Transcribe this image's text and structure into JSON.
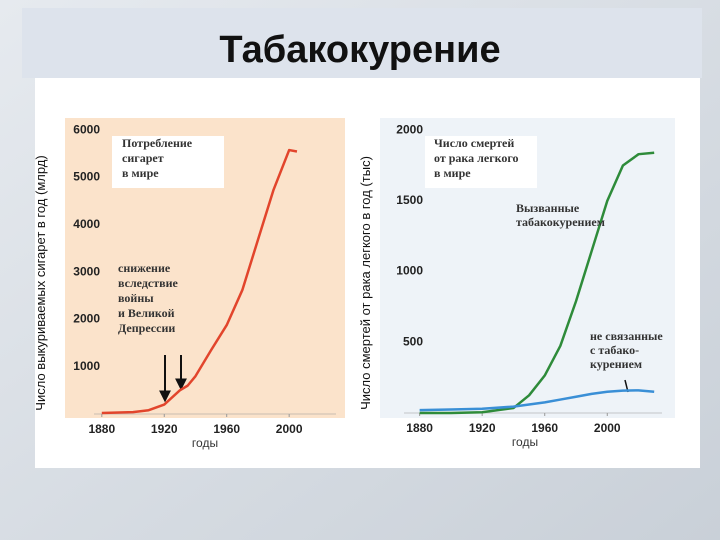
{
  "title": "Табакокурение",
  "chart_data": [
    {
      "type": "line",
      "y_label": "Число выкуриваемых сигарет в год (млрд)",
      "x_label": "годы",
      "x": [
        1880,
        1900,
        1910,
        1920,
        1930,
        1935,
        1940,
        1950,
        1960,
        1970,
        1980,
        1990,
        2000,
        2005
      ],
      "series": [
        {
          "name": "Потребление сигарет в мире",
          "color": "#e2452c",
          "values": [
            20,
            40,
            80,
            200,
            500,
            600,
            800,
            1350,
            1880,
            2620,
            3680,
            4740,
            5580,
            5550
          ]
        }
      ],
      "xlim": [
        1875,
        2030
      ],
      "xticks": [
        1880,
        1920,
        1960,
        2000
      ],
      "ylim": [
        0,
        6300
      ],
      "yticks": [
        1000,
        2000,
        3000,
        4000,
        5000,
        6000
      ],
      "annotations": [
        {
          "lines": [
            "Потребление",
            "сигарет",
            "в мире"
          ]
        },
        {
          "lines": [
            "снижение",
            "вследствие",
            "войны",
            "и Великой",
            "Депрессии"
          ]
        }
      ]
    },
    {
      "type": "line",
      "y_label": "Число смертей от рака легкого в год (тыс)",
      "x_label": "годы",
      "x": [
        1880,
        1900,
        1920,
        1940,
        1950,
        1960,
        1970,
        1980,
        1990,
        2000,
        2010,
        2020,
        2030
      ],
      "series": [
        {
          "name": "Вызванные табакокурением",
          "color": "#2e8b3a",
          "values": [
            0,
            0,
            5,
            35,
            125,
            265,
            475,
            790,
            1145,
            1500,
            1750,
            1830,
            1840
          ]
        },
        {
          "name": "не связанные с табако- курением",
          "color": "#3a8fd6",
          "values": [
            20,
            25,
            30,
            45,
            60,
            75,
            95,
            115,
            135,
            150,
            158,
            160,
            150
          ]
        }
      ],
      "xlim": [
        1870,
        2035
      ],
      "xticks": [
        1880,
        1920,
        1960,
        2000
      ],
      "ylim": [
        0,
        2100
      ],
      "yticks": [
        500,
        1000,
        1500,
        2000
      ],
      "annotations": [
        {
          "lines": [
            "Число смертей",
            "от рака легкого",
            "в мире"
          ]
        }
      ]
    }
  ]
}
